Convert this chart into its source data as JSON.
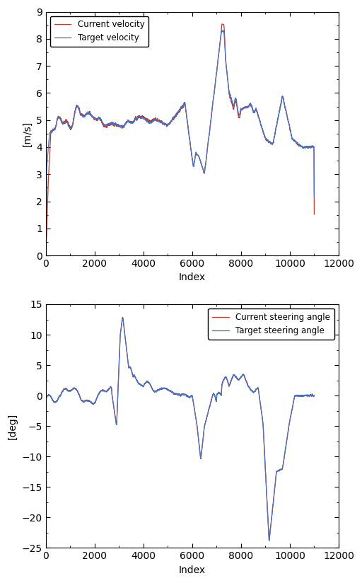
{
  "fig_width": 5.12,
  "fig_height": 8.24,
  "dpi": 100,
  "plot1": {
    "ylabel": "[m/s]",
    "xlabel": "Index",
    "xlim": [
      0,
      12000
    ],
    "ylim": [
      0,
      9
    ],
    "yticks": [
      0,
      1,
      2,
      3,
      4,
      5,
      6,
      7,
      8,
      9
    ],
    "xticks": [
      0,
      2000,
      4000,
      6000,
      8000,
      10000,
      12000
    ],
    "legend": [
      "Target velocity",
      "Current velocity"
    ],
    "line1_color": "#4472C4",
    "line2_color": "#C0392B",
    "line_width": 0.9
  },
  "plot2": {
    "ylabel": "[deg]",
    "xlabel": "Index",
    "xlim": [
      0,
      12000
    ],
    "ylim": [
      -25,
      15
    ],
    "yticks": [
      -25,
      -20,
      -15,
      -10,
      -5,
      0,
      5,
      10,
      15
    ],
    "xticks": [
      0,
      2000,
      4000,
      6000,
      8000,
      10000,
      12000
    ],
    "legend": [
      "Target steering angle",
      "Current steering angle"
    ],
    "line1_color": "#4472C4",
    "line2_color": "#C0392B",
    "line_width": 0.9
  }
}
